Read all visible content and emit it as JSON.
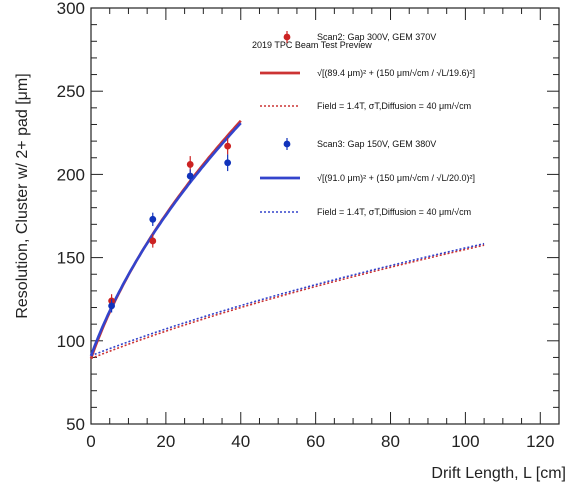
{
  "chart_data": {
    "type": "scatter",
    "title": "",
    "xlabel": "Drift Length, L [cm]",
    "ylabel": "Resolution, Cluster w/ 2+ pad [μm]",
    "xlim": [
      0,
      125
    ],
    "ylim": [
      50,
      300
    ],
    "x_ticks": [
      0,
      20,
      40,
      60,
      80,
      100,
      120
    ],
    "y_ticks": [
      50,
      100,
      150,
      200,
      250,
      300
    ],
    "legend_position": "top-right",
    "legend_title": "2019 TPC Beam Test Preview",
    "series": [
      {
        "name": "Scan2: Gap 300V, GEM 370V",
        "kind": "points",
        "color": "#cc2222",
        "x": [
          5.5,
          16.5,
          26.5,
          36.5
        ],
        "y": [
          124,
          160,
          206,
          217
        ],
        "yerr": [
          4,
          4,
          5,
          5
        ]
      },
      {
        "name": "√[(89.4 μm)² + (150 μm/√cm / √L/19.6)²]",
        "kind": "fit",
        "color": "#cc3333",
        "style": "solid",
        "formula": {
          "a": 89.4,
          "b": 150,
          "n": 19.6
        },
        "x_range": [
          0,
          40
        ]
      },
      {
        "name": "Field = 1.4T, σT,Diffusion = 40 μm/√cm",
        "kind": "fit",
        "color": "#cc3333",
        "style": "dotted",
        "formula": {
          "a": 89.4,
          "d": 40
        },
        "x_range": [
          0,
          105
        ]
      },
      {
        "name": "Scan3: Gap 150V, GEM 380V",
        "kind": "points",
        "color": "#1133bb",
        "x": [
          5.5,
          16.5,
          26.5,
          36.5
        ],
        "y": [
          121,
          173,
          199,
          207
        ],
        "yerr": [
          4,
          4,
          4,
          5
        ]
      },
      {
        "name": "√[(91.0 μm)² + (150 μm/√cm / √L/20.0)²]",
        "kind": "fit",
        "color": "#3344cc",
        "style": "solid",
        "formula": {
          "a": 91.0,
          "b": 150,
          "n": 20.0
        },
        "x_range": [
          0,
          40
        ]
      },
      {
        "name": "Field = 1.4T, σT,Diffusion = 40 μm/√cm",
        "kind": "fit",
        "color": "#3344cc",
        "style": "dotted",
        "formula": {
          "a": 91.0,
          "d": 40
        },
        "x_range": [
          0,
          105
        ]
      }
    ]
  }
}
